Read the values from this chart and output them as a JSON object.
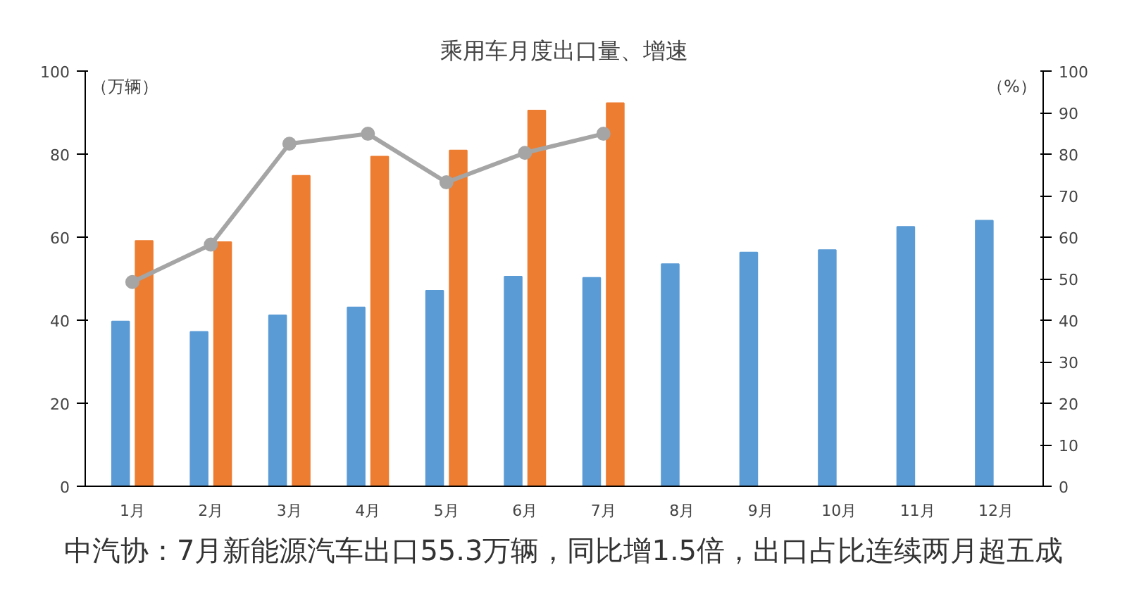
{
  "chart_data": {
    "type": "bar",
    "title": "乘用车月度出口量、增速",
    "ylabel": "（万辆）",
    "y2label": "（%）",
    "categories": [
      "1月",
      "2月",
      "3月",
      "4月",
      "5月",
      "6月",
      "7月",
      "8月",
      "9月",
      "10月",
      "11月",
      "12月"
    ],
    "series": [
      {
        "color": "#5b9bd5",
        "values": [
          39.7,
          37.2,
          41.2,
          43.1,
          47.1,
          50.5,
          50.2,
          53.5,
          56.3,
          56.9,
          62.5,
          64.0
        ]
      },
      {
        "color": "#ed7d31",
        "values": [
          59.1,
          58.8,
          74.8,
          79.4,
          80.9,
          90.5,
          92.3,
          null,
          null,
          null,
          null,
          null
        ]
      },
      {
        "type": "line",
        "axis": "y2",
        "color": "#a5a5a5",
        "marker": "circle",
        "values": [
          49.2,
          58.2,
          82.5,
          84.9,
          73.2,
          80.3,
          84.9,
          null,
          null,
          null,
          null,
          null
        ]
      }
    ],
    "ylim": [
      0,
      100
    ],
    "yticks": [
      0,
      20,
      40,
      60,
      80,
      100
    ],
    "y2lim": [
      0,
      100
    ],
    "y2ticks": [
      0,
      10,
      20,
      30,
      40,
      50,
      60,
      70,
      80,
      90,
      100
    ],
    "grid": false,
    "annotations": [
      "中汽协：7月新能源汽车出口55.3万辆，同比增1.5倍，出口占比连续两月超五成"
    ]
  }
}
